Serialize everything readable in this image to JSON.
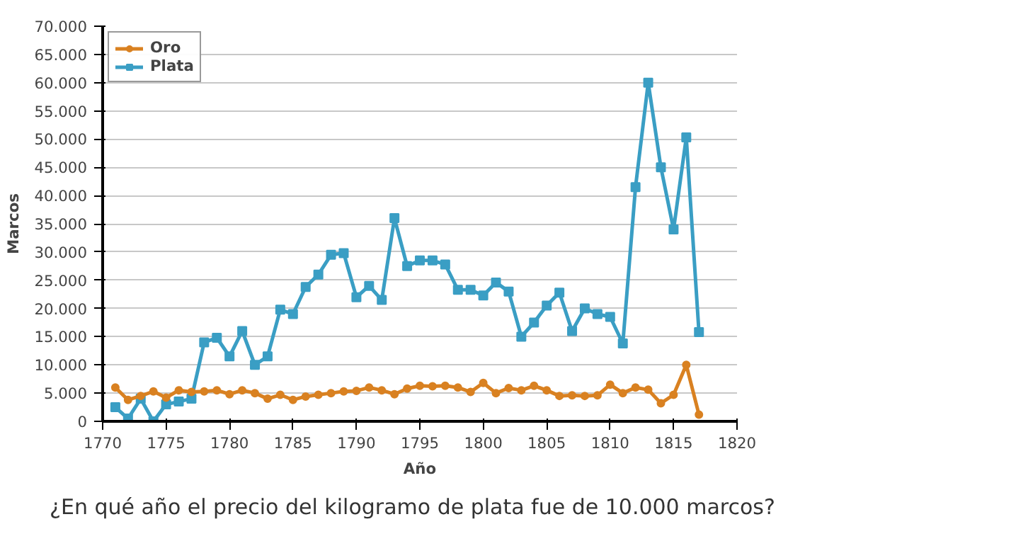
{
  "chart_data": {
    "type": "line",
    "xlabel": "Año",
    "ylabel": "Marcos",
    "x": [
      1771,
      1772,
      1773,
      1774,
      1775,
      1776,
      1777,
      1778,
      1779,
      1780,
      1781,
      1782,
      1783,
      1784,
      1785,
      1786,
      1787,
      1788,
      1789,
      1790,
      1791,
      1792,
      1793,
      1794,
      1795,
      1796,
      1797,
      1798,
      1799,
      1800,
      1801,
      1802,
      1803,
      1804,
      1805,
      1806,
      1807,
      1808,
      1809,
      1810,
      1811,
      1812,
      1813,
      1814,
      1815,
      1816,
      1817
    ],
    "series": [
      {
        "name": "Oro",
        "color": "#d98121",
        "marker": "circle",
        "values": [
          6000,
          3800,
          4500,
          5300,
          4200,
          5500,
          5200,
          5300,
          5500,
          4800,
          5500,
          5000,
          4000,
          4700,
          3800,
          4400,
          4700,
          5000,
          5300,
          5400,
          6000,
          5500,
          4800,
          5800,
          6300,
          6200,
          6300,
          6000,
          5200,
          6800,
          5000,
          5900,
          5500,
          6300,
          5500,
          4500,
          4600,
          4500,
          4600,
          6500,
          5000,
          6000,
          5600,
          3200,
          4700,
          10000,
          1200
        ]
      },
      {
        "name": "Plata",
        "color": "#3a9ec4",
        "marker": "square",
        "values": [
          2500,
          500,
          4000,
          0,
          3000,
          3500,
          4000,
          14000,
          14800,
          11500,
          16000,
          10000,
          11500,
          19800,
          19000,
          23800,
          26000,
          29500,
          29800,
          22000,
          24000,
          21500,
          36000,
          27500,
          28500,
          28500,
          27800,
          23300,
          23300,
          22300,
          24600,
          23000,
          15000,
          17500,
          20500,
          22800,
          16000,
          20000,
          19000,
          18500,
          13800,
          41500,
          60000,
          45000,
          34000,
          50300,
          15800
        ]
      }
    ],
    "xlim": [
      1770,
      1820
    ],
    "xticks": [
      1770,
      1775,
      1780,
      1785,
      1790,
      1795,
      1800,
      1805,
      1810,
      1815,
      1820
    ],
    "ylim": [
      0,
      70000
    ],
    "yticks": [
      0,
      {
        "value": 5000,
        "label": "5.000"
      },
      {
        "value": 10000,
        "label": "10.000"
      },
      {
        "value": 15000,
        "label": "15.000"
      },
      {
        "value": 20000,
        "label": "20.000"
      },
      {
        "value": 25000,
        "label": "25.000"
      },
      {
        "value": 30000,
        "label": "30.000"
      },
      {
        "value": 35000,
        "label": "35.000"
      },
      {
        "value": 40000,
        "label": "40.000"
      },
      {
        "value": 45000,
        "label": "45.000"
      },
      {
        "value": 50000,
        "label": "50.000"
      },
      {
        "value": 55000,
        "label": "55.000"
      },
      {
        "value": 60000,
        "label": "60.000"
      },
      {
        "value": 65000,
        "label": "65.000"
      },
      {
        "value": 70000,
        "label": "70.000"
      }
    ],
    "grid": "y",
    "legend": "top left",
    "annotations": [
      "¿En qué año el precio del kilogramo de plata fue de 10.000 marcos?"
    ]
  }
}
